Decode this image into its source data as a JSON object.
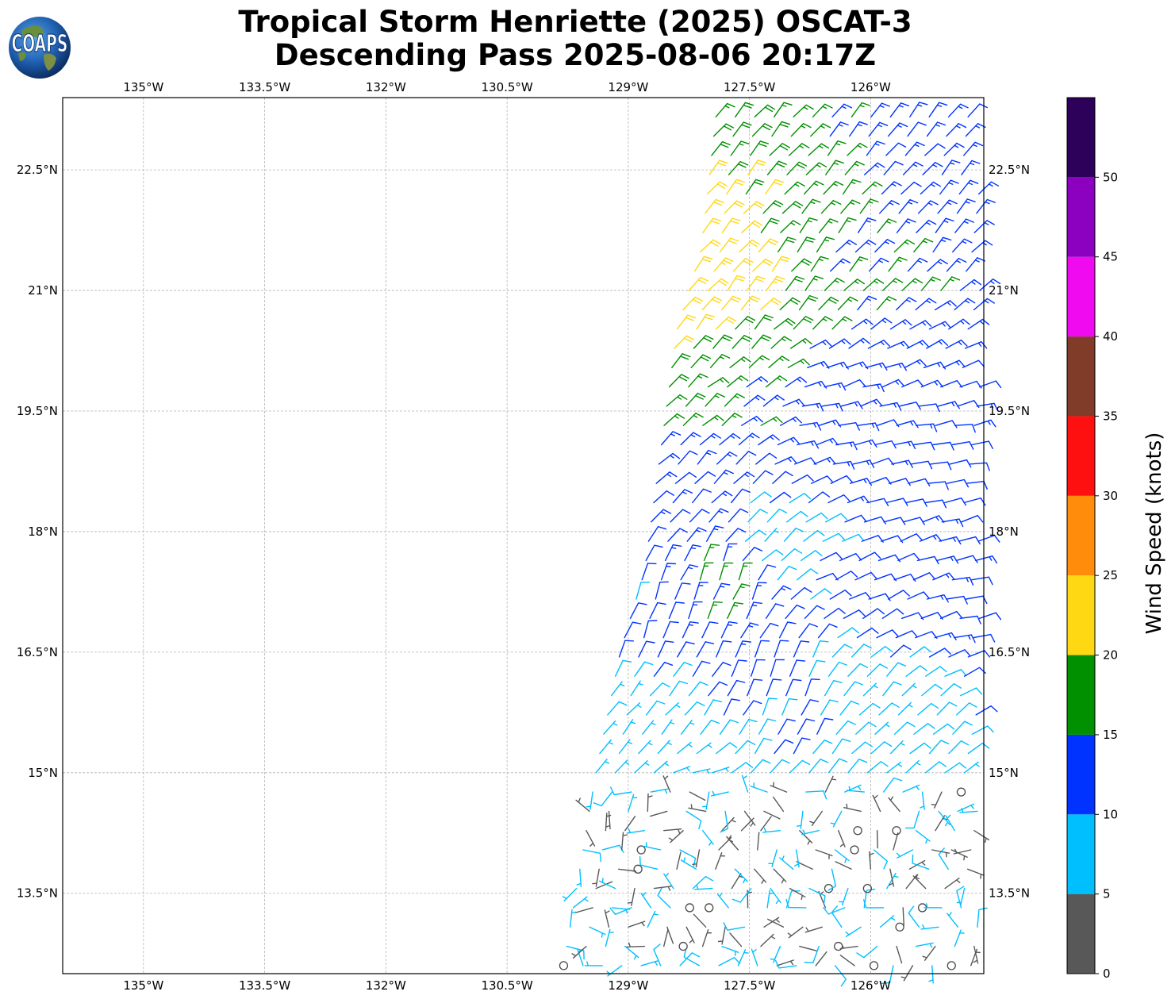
{
  "title_line1": "Tropical Storm Henriette (2025) OSCAT-3",
  "title_line2": "Descending Pass 2025-08-06 20:17Z",
  "logo": {
    "text": "COAPS",
    "icon": "coaps-globe-logo"
  },
  "map": {
    "lon_range": [
      -136.0,
      -124.6
    ],
    "lat_range": [
      12.5,
      23.4
    ],
    "grid": true,
    "lon_ticks": [
      {
        "value": -135.0,
        "label": "135°W"
      },
      {
        "value": -133.5,
        "label": "133.5°W"
      },
      {
        "value": -132.0,
        "label": "132°W"
      },
      {
        "value": -130.5,
        "label": "130.5°W"
      },
      {
        "value": -129.0,
        "label": "129°W"
      },
      {
        "value": -127.5,
        "label": "127.5°W"
      },
      {
        "value": -126.0,
        "label": "126°W"
      }
    ],
    "lat_ticks": [
      {
        "value": 22.5,
        "label": "22.5°N"
      },
      {
        "value": 21.0,
        "label": "21°N"
      },
      {
        "value": 19.5,
        "label": "19.5°N"
      },
      {
        "value": 18.0,
        "label": "18°N"
      },
      {
        "value": 16.5,
        "label": "16.5°N"
      },
      {
        "value": 15.0,
        "label": "15°N"
      },
      {
        "value": 13.5,
        "label": "13.5°N"
      }
    ]
  },
  "colorbar": {
    "label": "Wind Speed (knots)",
    "range": [
      0,
      55
    ],
    "ticks": [
      0,
      5,
      10,
      15,
      20,
      25,
      30,
      35,
      40,
      45,
      50
    ],
    "bins": [
      {
        "from": 0,
        "to": 5,
        "color": "#585858"
      },
      {
        "from": 5,
        "to": 10,
        "color": "#00bfff"
      },
      {
        "from": 10,
        "to": 15,
        "color": "#0033ff"
      },
      {
        "from": 15,
        "to": 20,
        "color": "#009000"
      },
      {
        "from": 20,
        "to": 25,
        "color": "#ffd814"
      },
      {
        "from": 25,
        "to": 30,
        "color": "#ff8c0a"
      },
      {
        "from": 30,
        "to": 35,
        "color": "#ff1010"
      },
      {
        "from": 35,
        "to": 40,
        "color": "#803c28"
      },
      {
        "from": 40,
        "to": 45,
        "color": "#f00af0"
      },
      {
        "from": 45,
        "to": 50,
        "color": "#8c00c0"
      },
      {
        "from": 50,
        "to": 55,
        "color": "#2d005a"
      }
    ]
  },
  "chart_data": {
    "type": "scatter",
    "description_kind": "wind barbs",
    "swath": {
      "lon_step_deg": 0.24,
      "lat_step_deg": 0.24,
      "lat_min": 12.6,
      "lat_max": 23.3,
      "west_edge_lon": [
        [
          12.6,
          -129.8
        ],
        [
          15.0,
          -129.4
        ],
        [
          16.5,
          -129.1
        ],
        [
          17.5,
          -128.8
        ],
        [
          19.0,
          -128.6
        ],
        [
          20.5,
          -128.4
        ],
        [
          21.5,
          -128.1
        ],
        [
          23.3,
          -127.9
        ]
      ],
      "east_edge_lon": -124.65
    },
    "wind_regions": [
      {
        "area": "south (lat < 14.8)",
        "speed_kts": [
          1,
          9
        ],
        "direction": "variable",
        "calm_circles": true
      },
      {
        "area": "14.8–17.5N",
        "speed_kts": [
          5,
          12
        ],
        "direction": "from NE / ENE"
      },
      {
        "area": "17.5–19.8N",
        "speed_kts": [
          10,
          14
        ],
        "direction": "from E / NE"
      },
      {
        "area": "19.8–23.3N",
        "speed_kts": [
          12,
          24
        ],
        "direction": "from NE",
        "strongest": "western edge 20–23N, 20–24 kt"
      }
    ],
    "samples": [
      {
        "lon": -128.0,
        "lat": 23.0,
        "speed": 17,
        "dir_from": 40
      },
      {
        "lon": -128.1,
        "lat": 22.2,
        "speed": 21,
        "dir_from": 40
      },
      {
        "lon": -127.7,
        "lat": 21.2,
        "speed": 22,
        "dir_from": 40
      },
      {
        "lon": -126.5,
        "lat": 21.7,
        "speed": 16,
        "dir_from": 40
      },
      {
        "lon": -125.5,
        "lat": 22.5,
        "speed": 13,
        "dir_from": 40
      },
      {
        "lon": -128.4,
        "lat": 20.4,
        "speed": 21,
        "dir_from": 40
      },
      {
        "lon": -127.9,
        "lat": 19.8,
        "speed": 16,
        "dir_from": 50
      },
      {
        "lon": -126.5,
        "lat": 19.3,
        "speed": 13,
        "dir_from": 75
      },
      {
        "lon": -125.5,
        "lat": 18.8,
        "speed": 12,
        "dir_from": 80
      },
      {
        "lon": -128.0,
        "lat": 18.4,
        "speed": 12,
        "dir_from": 45
      },
      {
        "lon": -127.4,
        "lat": 17.8,
        "speed": 8,
        "dir_from": 50
      },
      {
        "lon": -126.2,
        "lat": 17.5,
        "speed": 11,
        "dir_from": 65
      },
      {
        "lon": -125.0,
        "lat": 17.2,
        "speed": 12,
        "dir_from": 75
      },
      {
        "lon": -127.8,
        "lat": 17.4,
        "speed": 16,
        "dir_from": 20
      },
      {
        "lon": -128.9,
        "lat": 16.9,
        "speed": 11,
        "dir_from": 20
      },
      {
        "lon": -127.0,
        "lat": 16.0,
        "speed": 11,
        "dir_from": 25
      },
      {
        "lon": -126.0,
        "lat": 15.8,
        "speed": 8,
        "dir_from": 45
      },
      {
        "lon": -129.0,
        "lat": 15.5,
        "speed": 7,
        "dir_from": 40
      },
      {
        "lon": -128.5,
        "lat": 14.2,
        "speed": 4,
        "dir_from": 100
      },
      {
        "lon": -126.5,
        "lat": 13.5,
        "speed": 6,
        "dir_from": 60
      },
      {
        "lon": -125.5,
        "lat": 13.2,
        "speed": 3,
        "dir_from": 160
      }
    ]
  }
}
